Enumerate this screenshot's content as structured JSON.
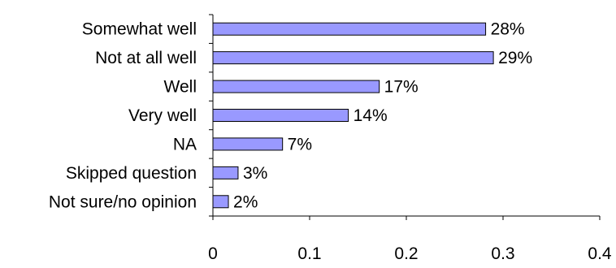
{
  "chart_data": {
    "type": "bar",
    "orientation": "horizontal",
    "title": "",
    "xlabel": "",
    "ylabel": "",
    "categories": [
      "Somewhat well",
      "Not at all well",
      "Well",
      "Very well",
      "NA",
      "Skipped question",
      "Not sure/no opinion"
    ],
    "values": [
      0.282,
      0.29,
      0.172,
      0.14,
      0.072,
      0.026,
      0.016
    ],
    "data_labels": [
      "28%",
      "29%",
      "17%",
      "14%",
      "7%",
      "3%",
      "2%"
    ],
    "xlim": [
      0,
      0.4
    ],
    "xticks": [
      0,
      0.1,
      0.2,
      0.3,
      0.4
    ],
    "xtick_labels": [
      "0",
      "0.1",
      "0.2",
      "0.3",
      "0.4"
    ],
    "grid": false,
    "legend": "none",
    "colors": {
      "bar_fill": "#9999ff",
      "bar_stroke": "#000000",
      "axis": "#000000"
    }
  }
}
